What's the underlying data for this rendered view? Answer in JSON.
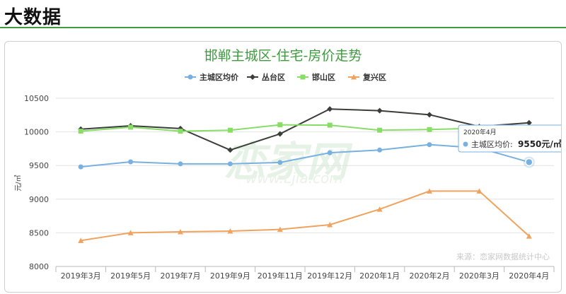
{
  "header": {
    "title": "大数据"
  },
  "chart_data": {
    "type": "line",
    "title": "邯郸主城区-住宅-房价走势",
    "ylabel": "元/㎡",
    "ylim": [
      8000,
      10500
    ],
    "yticks": [
      8000,
      8500,
      9000,
      9500,
      10000,
      10500
    ],
    "categories": [
      "2019年3月",
      "2019年5月",
      "2019年7月",
      "2019年9月",
      "2019年11月",
      "2019年12月",
      "2020年1月",
      "2020年2月",
      "2020年3月",
      "2020年4月"
    ],
    "grid": true,
    "legend_position": "top-center",
    "series": [
      {
        "name": "主城区均价",
        "color": "#78b0e0",
        "marker": "circle",
        "values": [
          9480,
          9555,
          9525,
          9525,
          9545,
          9690,
          9730,
          9810,
          9760,
          9550
        ]
      },
      {
        "name": "丛台区",
        "color": "#3a3f3a",
        "marker": "diamond",
        "values": [
          10040,
          10090,
          10050,
          9730,
          9970,
          10340,
          10315,
          10255,
          10080,
          10135
        ]
      },
      {
        "name": "邯山区",
        "color": "#88dd66",
        "marker": "square",
        "values": [
          10010,
          10070,
          10010,
          10025,
          10105,
          10100,
          10025,
          10035,
          10055,
          10060
        ]
      },
      {
        "name": "复兴区",
        "color": "#f0a35e",
        "marker": "triangle",
        "values": [
          8385,
          8500,
          8515,
          8525,
          8550,
          8620,
          8850,
          9120,
          9120,
          8450
        ]
      }
    ],
    "tooltip": {
      "category": "2020年4月",
      "series": "主城区均价",
      "label": "主城区均价:",
      "value": "9550元/㎡"
    },
    "source": "来源：恋家网数据统计中心",
    "watermark": {
      "text": "恋家网",
      "url": "www.Ljia.com"
    }
  }
}
